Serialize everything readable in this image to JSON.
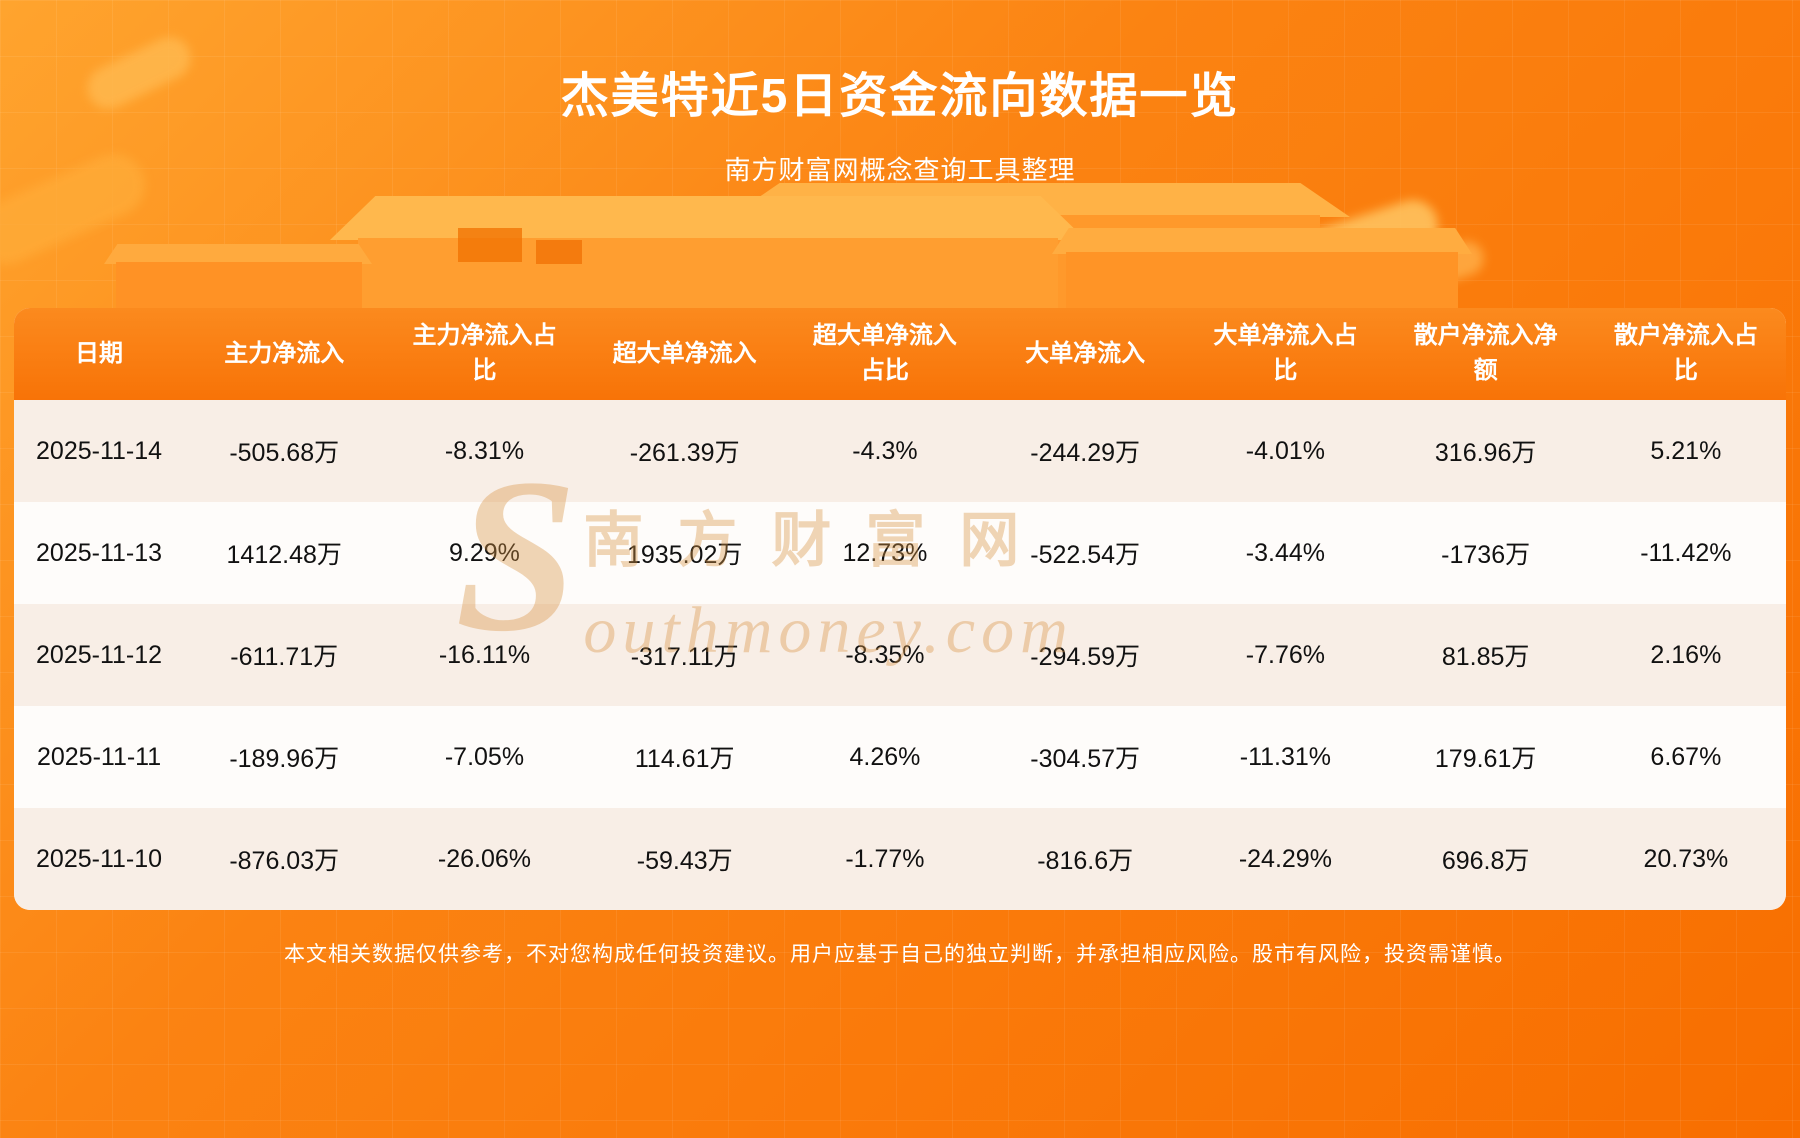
{
  "page": {
    "title": "杰美特近5日资金流向数据一览",
    "subtitle": "南方财富网概念查询工具整理",
    "disclaimer": "本文相关数据仅供参考，不对您构成任何投资建议。用户应基于自己的独立判断，并承担相应风险。股市有风险，投资需谨慎。",
    "watermark_s": "S",
    "watermark_cn": "南方财富网",
    "watermark_en": "outhmoney.com"
  },
  "colors": {
    "background_top": "#ffa42e",
    "background_bottom": "#f86e00",
    "header_row": "#f87c12",
    "row_tint": "#f8eee6",
    "row_plain": "#fefcfa",
    "title_text": "#ffffff",
    "cell_text": "#111111",
    "watermark": "#d99445"
  },
  "chart_data": {
    "type": "table",
    "title": "杰美特近5日资金流向数据一览",
    "subtitle": "南方财富网概念查询工具整理",
    "columns": [
      "日期",
      "主力净流入",
      "主力净流入占比",
      "超大单净流入",
      "超大单净流入占比",
      "大单净流入",
      "大单净流入占比",
      "散户净流入净额",
      "散户净流入占比"
    ],
    "rows": [
      [
        "2025-11-14",
        "-505.68万",
        "-8.31%",
        "-261.39万",
        "-4.3%",
        "-244.29万",
        "-4.01%",
        "316.96万",
        "5.21%"
      ],
      [
        "2025-11-13",
        "1412.48万",
        "9.29%",
        "1935.02万",
        "12.73%",
        "-522.54万",
        "-3.44%",
        "-1736万",
        "-11.42%"
      ],
      [
        "2025-11-12",
        "-611.71万",
        "-16.11%",
        "-317.11万",
        "-8.35%",
        "-294.59万",
        "-7.76%",
        "81.85万",
        "2.16%"
      ],
      [
        "2025-11-11",
        "-189.96万",
        "-7.05%",
        "114.61万",
        "4.26%",
        "-304.57万",
        "-11.31%",
        "179.61万",
        "6.67%"
      ],
      [
        "2025-11-10",
        "-876.03万",
        "-26.06%",
        "-59.43万",
        "-1.77%",
        "-816.6万",
        "-24.29%",
        "696.8万",
        "20.73%"
      ]
    ]
  }
}
